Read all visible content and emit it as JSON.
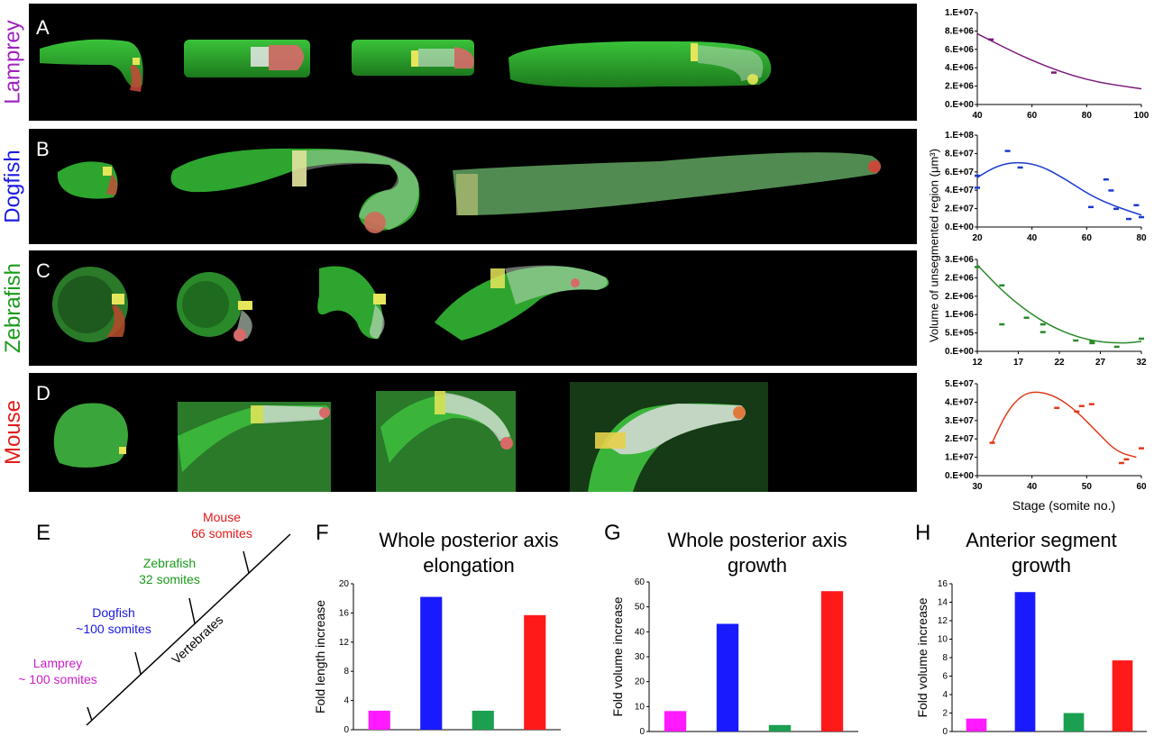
{
  "panels": [
    {
      "letter": "A",
      "species": "Lamprey",
      "color": "#a020c0"
    },
    {
      "letter": "B",
      "species": "Dogfish",
      "color": "#1a1ae0"
    },
    {
      "letter": "C",
      "species": "Zebrafish",
      "color": "#1a9a1a"
    },
    {
      "letter": "D",
      "species": "Mouse",
      "color": "#e01a1a"
    }
  ],
  "line_plots": {
    "ylabel": "Volume of unsegmented region (μm³)",
    "xlabel": "Stage (somite no.)"
  },
  "tree": {
    "letter": "E",
    "branch_label": "Vertebrates",
    "species": [
      {
        "name": "Mouse",
        "count": "66 somites",
        "color": "#e01a1a"
      },
      {
        "name": "Zebrafish",
        "count": "32 somites",
        "color": "#1a9a1a"
      },
      {
        "name": "Dogfish",
        "count": "~100 somites",
        "color": "#1a1ae0"
      },
      {
        "name": "Lamprey",
        "count": "~ 100 somites",
        "color": "#c81ec8"
      }
    ]
  },
  "bar_titles": {
    "F": [
      "Whole posterior axis",
      "elongation"
    ],
    "G": [
      "Whole posterior axis",
      "growth"
    ],
    "H": [
      "Anterior segment",
      "growth"
    ]
  },
  "chart_data": [
    {
      "id": "A",
      "type": "line",
      "xlim": [
        40,
        100
      ],
      "ylim": [
        0,
        10000000
      ],
      "xticks": [
        "40",
        "60",
        "80",
        "100"
      ],
      "yticks": [
        "0.E+00",
        "2.E+06",
        "4.E+06",
        "6.E+06",
        "8.E+06",
        "1.E+07"
      ],
      "color": "#7a1a7a",
      "points": [
        [
          45,
          7100000
        ],
        [
          68,
          3500000
        ]
      ],
      "fit": [
        [
          40,
          7700000
        ],
        [
          60,
          4700000
        ],
        [
          80,
          2600000
        ],
        [
          100,
          1700000
        ]
      ]
    },
    {
      "id": "B",
      "type": "line",
      "xlim": [
        20,
        85
      ],
      "ylim": [
        0,
        100000000
      ],
      "xticks": [
        "20",
        "40",
        "60",
        "80"
      ],
      "yticks": [
        "0.E+00",
        "2.E+07",
        "4.E+07",
        "6.E+07",
        "8.E+07",
        "1.E+08"
      ],
      "color": "#1a3ad0",
      "points": [
        [
          20,
          56000000
        ],
        [
          20,
          43000000
        ],
        [
          32,
          83000000
        ],
        [
          37,
          65000000
        ],
        [
          65,
          22000000
        ],
        [
          71,
          52000000
        ],
        [
          73,
          40000000
        ],
        [
          75,
          20000000
        ],
        [
          80,
          9000000
        ],
        [
          83,
          24000000
        ],
        [
          85,
          11000000
        ]
      ],
      "fit": [
        [
          20,
          54000000
        ],
        [
          28,
          67000000
        ],
        [
          36,
          71000000
        ],
        [
          45,
          67000000
        ],
        [
          55,
          52000000
        ],
        [
          65,
          34000000
        ],
        [
          75,
          22000000
        ],
        [
          85,
          13000000
        ]
      ]
    },
    {
      "id": "C",
      "type": "line",
      "xlim": [
        12,
        32
      ],
      "ylim": [
        0,
        2500000
      ],
      "xticks": [
        "12",
        "17",
        "22",
        "27",
        "32"
      ],
      "yticks": [
        "0.E+00",
        "5.E+05",
        "1.E+06",
        "2.E+06",
        "2.E+06",
        "3.E+06"
      ],
      "color": "#2a8a2a",
      "points": [
        [
          12,
          2300000
        ],
        [
          15,
          1800000
        ],
        [
          15,
          740000
        ],
        [
          18,
          920000
        ],
        [
          20,
          740000
        ],
        [
          20,
          530000
        ],
        [
          24,
          300000
        ],
        [
          26,
          280000
        ],
        [
          26,
          230000
        ],
        [
          29,
          130000
        ],
        [
          32,
          350000
        ]
      ],
      "fit": [
        [
          12,
          2350000
        ],
        [
          15,
          1650000
        ],
        [
          18,
          1100000
        ],
        [
          21,
          680000
        ],
        [
          24,
          400000
        ],
        [
          27,
          250000
        ],
        [
          30,
          220000
        ],
        [
          32,
          270000
        ]
      ]
    },
    {
      "id": "D",
      "type": "line",
      "xlim": [
        30,
        63
      ],
      "ylim": [
        0,
        50000000
      ],
      "xticks": [
        "30",
        "40",
        "50",
        "60"
      ],
      "yticks": [
        "0.E+00",
        "1.E+07",
        "2.E+07",
        "3.E+07",
        "4.E+07",
        "5.E+07"
      ],
      "color": "#e03a1a",
      "points": [
        [
          33,
          18000000
        ],
        [
          46,
          37000000
        ],
        [
          50,
          35000000
        ],
        [
          51,
          38000000
        ],
        [
          53,
          39000000
        ],
        [
          59,
          7000000
        ],
        [
          60,
          9000000
        ],
        [
          63,
          15000000
        ]
      ],
      "fit": [
        [
          33,
          18000000
        ],
        [
          36,
          35000000
        ],
        [
          39,
          44000000
        ],
        [
          42,
          46000000
        ],
        [
          46,
          43000000
        ],
        [
          50,
          35000000
        ],
        [
          54,
          24000000
        ],
        [
          58,
          13000000
        ],
        [
          62,
          10000000
        ]
      ]
    },
    {
      "id": "F",
      "type": "bar",
      "ylabel": "Fold length increase",
      "ylim": [
        0,
        20
      ],
      "yticks": [
        "0",
        "4",
        "8",
        "12",
        "16",
        "20"
      ],
      "values": [
        2.6,
        18.2,
        2.6,
        15.7
      ],
      "colors": [
        "#ff1aff",
        "#1a1aff",
        "#1aa050",
        "#ff1a1a"
      ]
    },
    {
      "id": "G",
      "type": "bar",
      "ylabel": "Fold volume increase",
      "ylim": [
        0,
        60
      ],
      "yticks": [
        "0",
        "10",
        "20",
        "30",
        "40",
        "50",
        "60"
      ],
      "values": [
        8.2,
        43.2,
        2.6,
        56.3
      ],
      "colors": [
        "#ff1aff",
        "#1a1aff",
        "#1aa050",
        "#ff1a1a"
      ]
    },
    {
      "id": "H",
      "type": "bar",
      "ylabel": "Fold volume increase",
      "ylim": [
        0,
        16
      ],
      "yticks": [
        "0",
        "2",
        "4",
        "6",
        "8",
        "10",
        "12",
        "14",
        "16"
      ],
      "values": [
        1.4,
        15.1,
        2.0,
        7.7
      ],
      "colors": [
        "#ff1aff",
        "#1a1aff",
        "#1aa050",
        "#ff1a1a"
      ]
    }
  ]
}
